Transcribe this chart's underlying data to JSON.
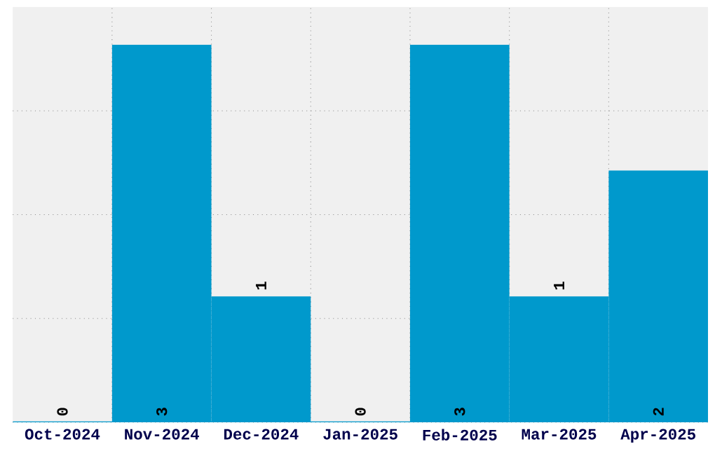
{
  "chart_data": {
    "type": "bar",
    "categories": [
      "Oct-2024",
      "Nov-2024",
      "Dec-2024",
      "Jan-2025",
      "Feb-2025",
      "Mar-2025",
      "Apr-2025"
    ],
    "values": [
      0,
      3,
      1,
      0,
      3,
      1,
      2
    ],
    "color": "#0099cc",
    "ylim": [
      0,
      3.3
    ],
    "yticks": [
      {
        "value": 0,
        "label": null
      },
      {
        "value": 0.825,
        "label": null
      },
      {
        "value": 1.65,
        "label": null
      },
      {
        "value": 2.475,
        "label": null
      }
    ],
    "tick_labels": "x",
    "grid": true,
    "data_labels": true
  }
}
